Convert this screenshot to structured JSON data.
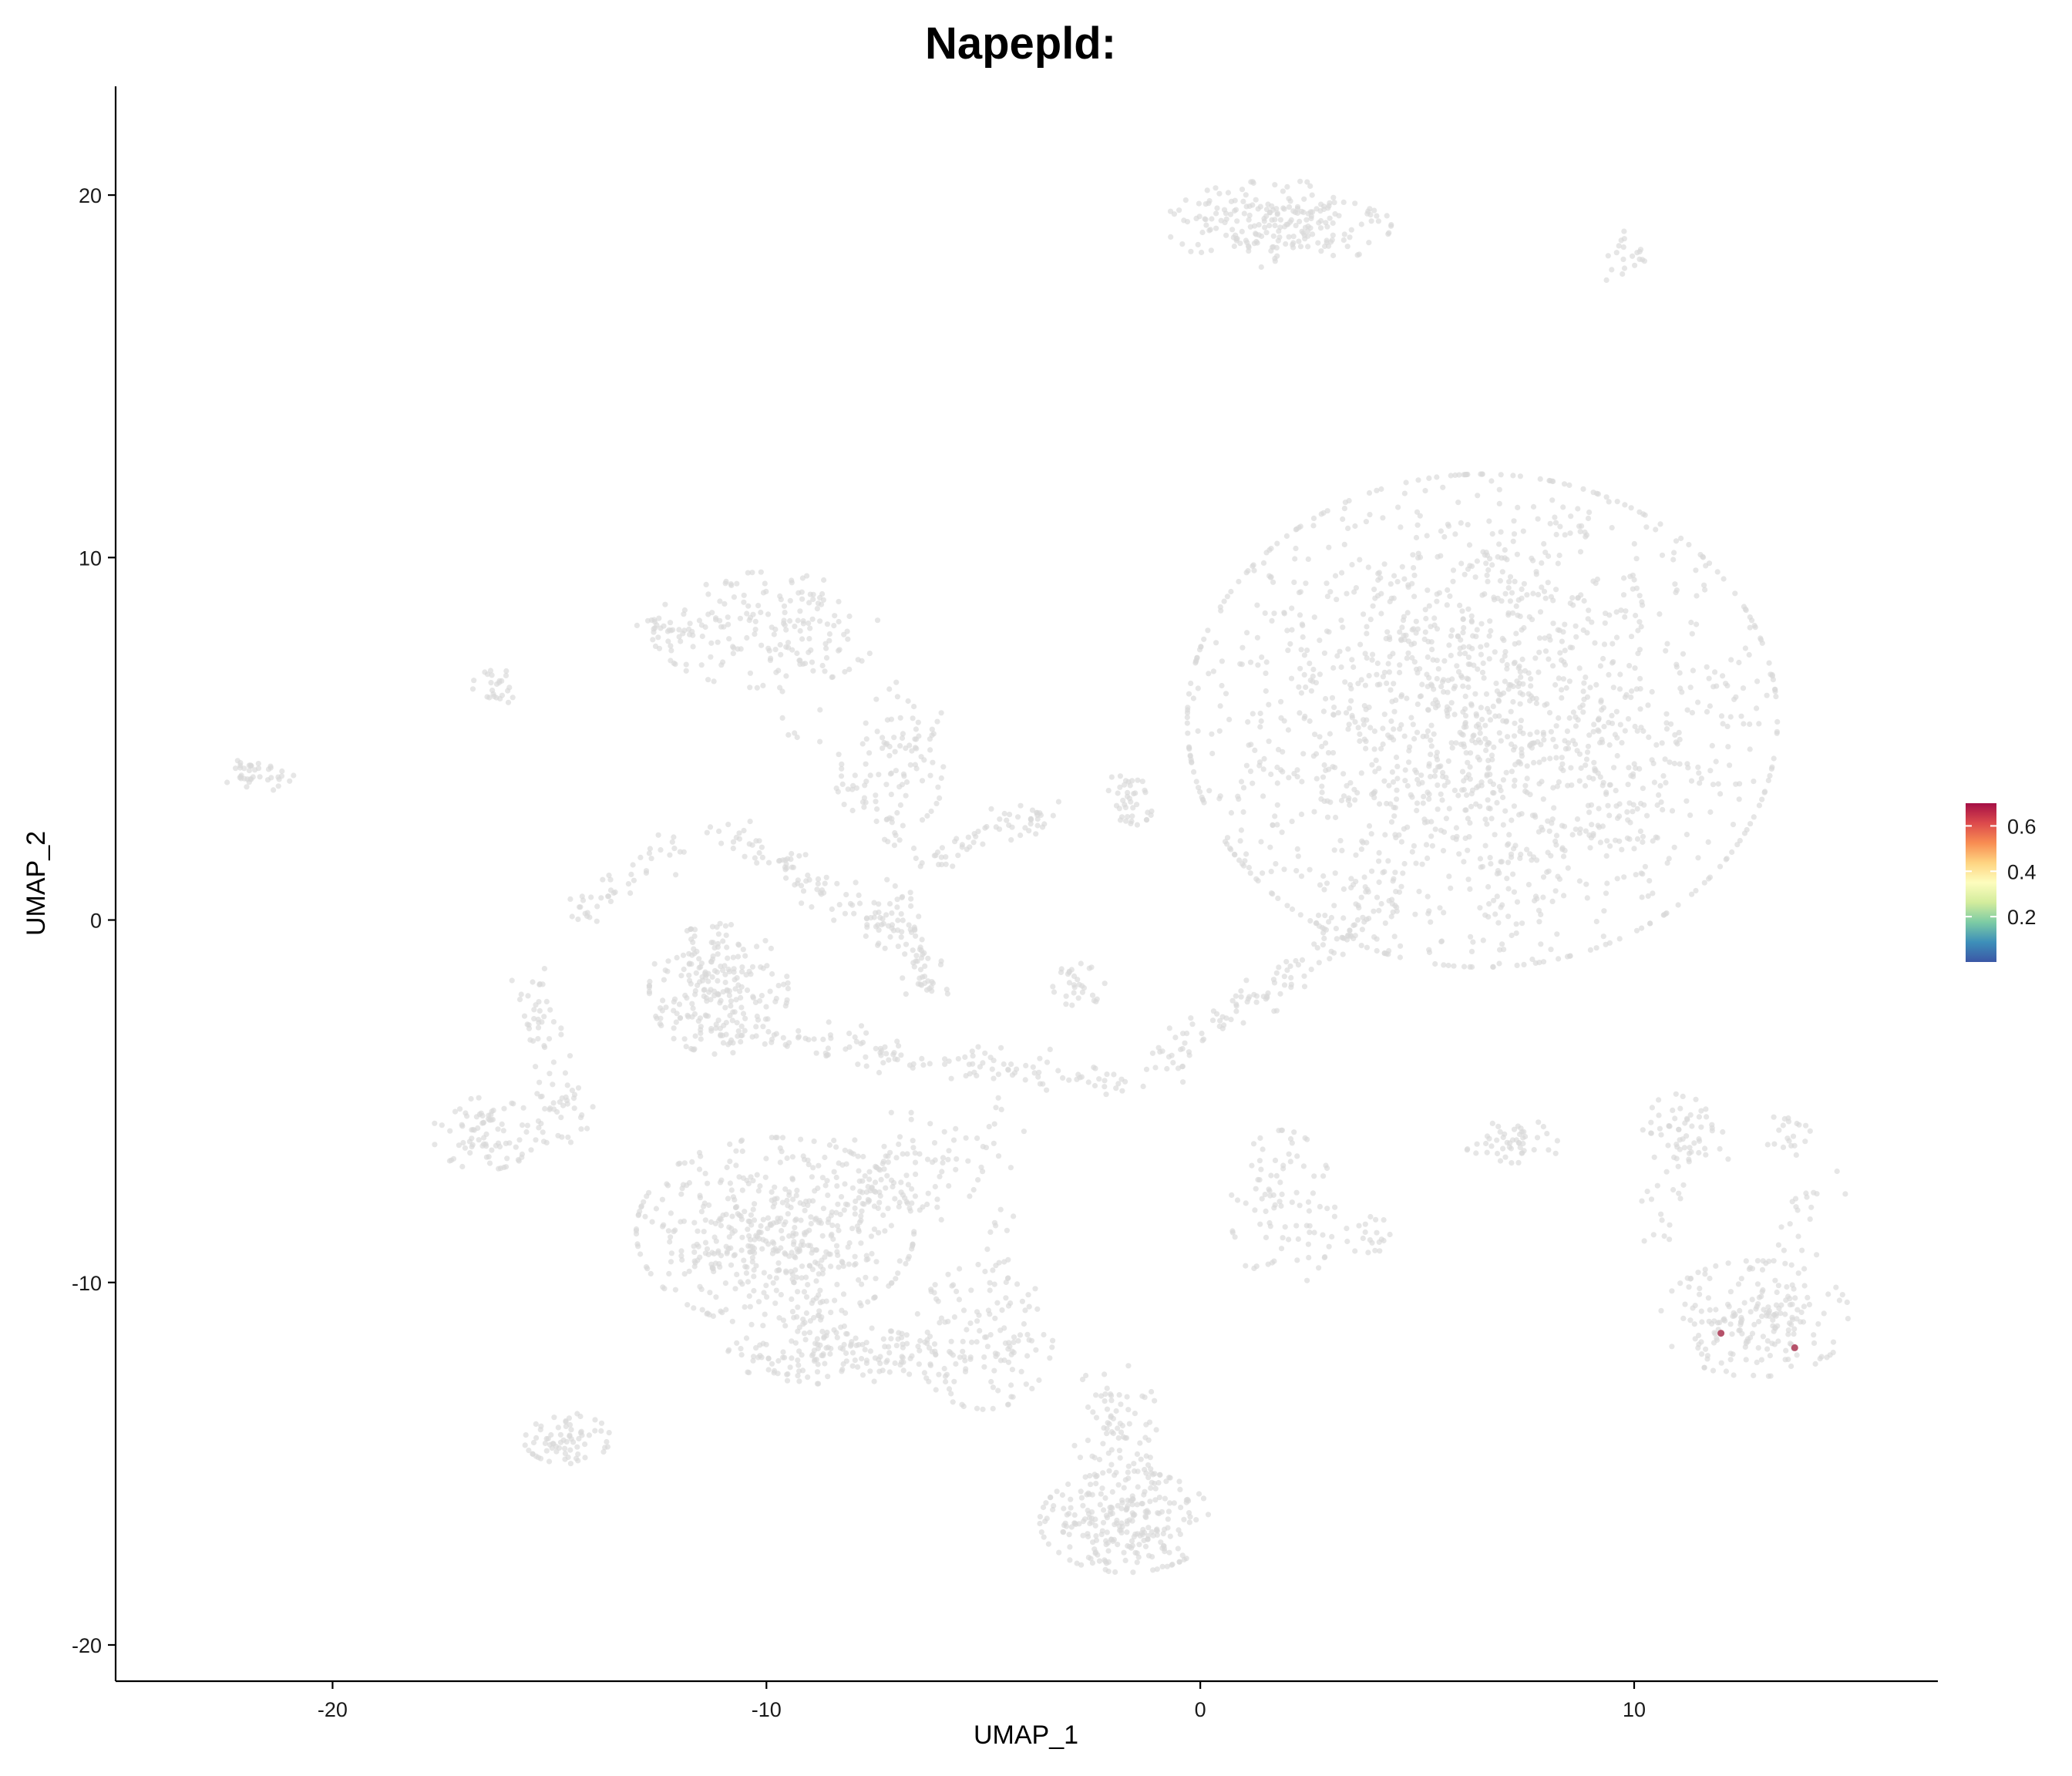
{
  "chart_data": {
    "type": "scatter",
    "title": "Napepld:",
    "xlabel": "UMAP_1",
    "ylabel": "UMAP_2",
    "xlim": [
      -25,
      17
    ],
    "ylim": [
      -21,
      23
    ],
    "xticks": [
      -20,
      -10,
      0,
      10
    ],
    "yticks": [
      -20,
      -10,
      0,
      10,
      20
    ],
    "grid": false,
    "point_color_default": "#d9d9d9",
    "clusters": [
      {
        "cx": 6.5,
        "cy": 5.5,
        "sx": 3.4,
        "sy": 3.4,
        "n": 1700
      },
      {
        "cx": 1.8,
        "cy": 19.2,
        "sx": 1.3,
        "sy": 0.6,
        "n": 220
      },
      {
        "cx": 9.8,
        "cy": 18.2,
        "sx": 0.3,
        "sy": 0.4,
        "n": 20
      },
      {
        "cx": -10.0,
        "cy": 8.0,
        "sx": 1.3,
        "sy": 0.8,
        "n": 170
      },
      {
        "cx": -12.2,
        "cy": 8.0,
        "sx": 0.4,
        "sy": 0.3,
        "n": 30
      },
      {
        "cx": -11.1,
        "cy": -1.9,
        "sx": 0.8,
        "sy": 0.9,
        "n": 220
      },
      {
        "cx": -9.8,
        "cy": -8.6,
        "sx": 1.6,
        "sy": 1.3,
        "n": 520
      },
      {
        "cx": -6.9,
        "cy": -6.9,
        "sx": 0.9,
        "sy": 0.8,
        "n": 90
      },
      {
        "cx": -8.5,
        "cy": -12.0,
        "sx": 1.2,
        "sy": 0.4,
        "n": 150
      },
      {
        "cx": -5.0,
        "cy": -11.5,
        "sx": 0.8,
        "sy": 1.0,
        "n": 140
      },
      {
        "cx": -1.7,
        "cy": -16.6,
        "sx": 1.0,
        "sy": 0.7,
        "n": 260
      },
      {
        "cx": -2.0,
        "cy": -13.8,
        "sx": 0.5,
        "sy": 0.8,
        "n": 50
      },
      {
        "cx": -16.5,
        "cy": -5.9,
        "sx": 0.6,
        "sy": 0.5,
        "n": 80
      },
      {
        "cx": -14.8,
        "cy": -5.2,
        "sx": 0.4,
        "sy": 0.5,
        "n": 40
      },
      {
        "cx": -14.6,
        "cy": -14.3,
        "sx": 0.5,
        "sy": 0.35,
        "n": 70
      },
      {
        "cx": -21.7,
        "cy": 4.0,
        "sx": 0.4,
        "sy": 0.25,
        "n": 40
      },
      {
        "cx": -16.2,
        "cy": 6.4,
        "sx": 0.3,
        "sy": 0.25,
        "n": 25
      },
      {
        "cx": -1.6,
        "cy": 3.4,
        "sx": 0.3,
        "sy": 0.4,
        "n": 40
      },
      {
        "cx": -2.8,
        "cy": -1.8,
        "sx": 0.3,
        "sy": 0.3,
        "n": 30
      },
      {
        "cx": 12.8,
        "cy": -11.0,
        "sx": 1.1,
        "sy": 0.8,
        "n": 200
      },
      {
        "cx": 11.0,
        "cy": -5.8,
        "sx": 0.4,
        "sy": 0.5,
        "n": 40
      },
      {
        "cx": 7.2,
        "cy": -6.1,
        "sx": 0.6,
        "sy": 0.3,
        "n": 50
      },
      {
        "cx": 13.6,
        "cy": -5.9,
        "sx": 0.3,
        "sy": 0.3,
        "n": 20
      },
      {
        "cx": 1.9,
        "cy": -8.0,
        "sx": 0.6,
        "sy": 1.1,
        "n": 90
      },
      {
        "cx": 3.9,
        "cy": -8.7,
        "sx": 0.3,
        "sy": 0.3,
        "n": 20
      },
      {
        "cx": -6.8,
        "cy": 4.6,
        "sx": 0.5,
        "sy": 1.0,
        "n": 80
      }
    ],
    "bridges": [
      {
        "from": [
          -11.5,
          -3.0
        ],
        "to": [
          -1.5,
          -4.5
        ],
        "n": 140
      },
      {
        "from": [
          -1.0,
          -4.0
        ],
        "to": [
          4.5,
          0.5
        ],
        "n": 120
      },
      {
        "from": [
          -11.0,
          2.5
        ],
        "to": [
          -7.0,
          -0.5
        ],
        "n": 90
      },
      {
        "from": [
          -7.2,
          1.2
        ],
        "to": [
          -6.2,
          -2.2
        ],
        "n": 70
      },
      {
        "from": [
          -6.5,
          1.5
        ],
        "to": [
          -3.5,
          3.0
        ],
        "n": 60
      },
      {
        "from": [
          -14.5,
          0.0
        ],
        "to": [
          -12.0,
          2.2
        ],
        "n": 45
      },
      {
        "from": [
          -15.5,
          -1.5
        ],
        "to": [
          -14.8,
          -4.5
        ],
        "n": 40
      },
      {
        "from": [
          -5.0,
          -4.0
        ],
        "to": [
          -4.5,
          -10.0
        ],
        "n": 30
      },
      {
        "from": [
          -9.0,
          -10.0
        ],
        "to": [
          -8.5,
          -12.0
        ],
        "n": 20
      },
      {
        "from": [
          -9.5,
          6.0
        ],
        "to": [
          -7.0,
          2.0
        ],
        "n": 40
      },
      {
        "from": [
          13.0,
          -10.0
        ],
        "to": [
          14.2,
          -7.3
        ],
        "n": 25
      },
      {
        "from": [
          11.0,
          -6.5
        ],
        "to": [
          10.4,
          -9.0
        ],
        "n": 20
      },
      {
        "from": [
          10.5,
          -5.5
        ],
        "to": [
          12.3,
          -6.5
        ],
        "n": 15
      },
      {
        "from": [
          -2.5,
          -13.0
        ],
        "to": [
          -1.0,
          -15.5
        ],
        "n": 30
      }
    ],
    "highlighted_points": [
      {
        "x": 12.0,
        "y": -11.4,
        "value": 0.6
      },
      {
        "x": 13.7,
        "y": -11.8,
        "value": 0.55
      }
    ],
    "colorbar": {
      "colors": [
        "#3b57a6",
        "#3d8fb9",
        "#7ccba4",
        "#d3ec9c",
        "#fdfdbe",
        "#fed481",
        "#f88d52",
        "#dc4a4c",
        "#a50f46"
      ],
      "min": 0.0,
      "max": 0.7,
      "ticks": [
        0.2,
        0.4,
        0.6
      ],
      "tick_labels": [
        "0.2",
        "0.4",
        "0.6"
      ]
    }
  }
}
